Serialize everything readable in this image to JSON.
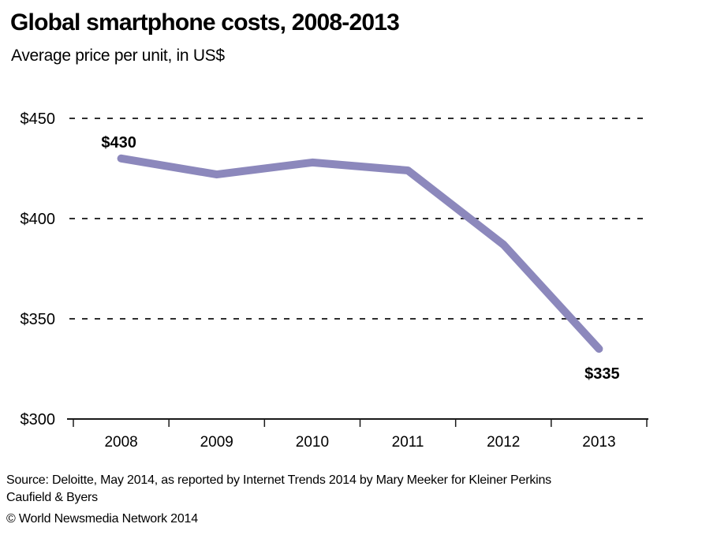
{
  "chart_data": {
    "type": "line",
    "title": "Global smartphone costs, 2008-2013",
    "subtitle": "Average price per unit, in US$",
    "categories": [
      "2008",
      "2009",
      "2010",
      "2011",
      "2012",
      "2013"
    ],
    "series": [
      {
        "name": "Average price per unit (US$)",
        "values": [
          430,
          422,
          428,
          424,
          387,
          335
        ]
      }
    ],
    "ylim": [
      300,
      450
    ],
    "yticks": [
      {
        "value": 450,
        "label": "$450"
      },
      {
        "value": 400,
        "label": "$400"
      },
      {
        "value": 350,
        "label": "$350"
      },
      {
        "value": 300,
        "label": "$300"
      }
    ],
    "grid": "dashed-horizontal",
    "legend": "none",
    "line_color": "#8c88bc",
    "grid_color": "#2e2e2e",
    "axis_color": "#1a1a1a",
    "annotations": [
      {
        "point_index": 0,
        "label": "$430",
        "position": "above"
      },
      {
        "point_index": 5,
        "label": "$335",
        "position": "below"
      }
    ]
  },
  "footer": {
    "source": "Source: Deloitte, May 2014, as reported by Internet Trends 2014 by Mary Meeker for Kleiner Perkins Caufield & Byers",
    "copyright": "© World Newsmedia Network 2014"
  }
}
